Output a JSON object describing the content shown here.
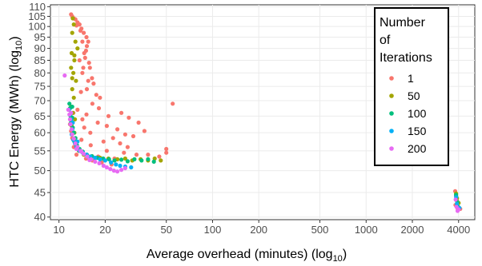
{
  "chart_data": {
    "type": "scatter",
    "xlabel": "Average overhead (minutes) (log",
    "xlabel_sub": "10",
    "xlabel_close": ")",
    "ylabel": "HTC Energy (MWh) (log",
    "ylabel_sub": "10",
    "ylabel_close": ")",
    "x_scale": "log10",
    "y_scale": "log10",
    "xlim": [
      8.8,
      5100
    ],
    "ylim": [
      39.5,
      111
    ],
    "x_ticks": [
      10,
      20,
      50,
      100,
      200,
      500,
      1000,
      2000,
      4000
    ],
    "x_tick_labels": [
      "10",
      "20",
      "50",
      "100",
      "200",
      "500",
      "1000",
      "2000",
      "4000"
    ],
    "y_ticks": [
      40,
      45,
      50,
      55,
      60,
      65,
      70,
      75,
      80,
      85,
      90,
      95,
      100,
      105,
      110
    ],
    "y_tick_labels": [
      "40",
      "45",
      "50",
      "55",
      "60",
      "65",
      "70",
      "75",
      "80",
      "85",
      "90",
      "95",
      "100",
      "105",
      "110"
    ],
    "grid": true,
    "legend": {
      "title_lines": [
        "Number",
        "of",
        "Iterations"
      ],
      "placement": "top-right"
    },
    "series": [
      {
        "name": "1",
        "color": "#F8766D",
        "points": [
          [
            12.0,
            106
          ],
          [
            12.2,
            105
          ],
          [
            12.5,
            104
          ],
          [
            12.8,
            103.5
          ],
          [
            13.2,
            102
          ],
          [
            13.6,
            101
          ],
          [
            14.0,
            99
          ],
          [
            14.5,
            97
          ],
          [
            15.1,
            95
          ],
          [
            15.5,
            93
          ],
          [
            15.2,
            91
          ],
          [
            14.6,
            88
          ],
          [
            14.8,
            86
          ],
          [
            15.7,
            84
          ],
          [
            15.9,
            82
          ],
          [
            14.2,
            80
          ],
          [
            16.4,
            78
          ],
          [
            16.8,
            76
          ],
          [
            15.2,
            74
          ],
          [
            17.5,
            72
          ],
          [
            18.5,
            71
          ],
          [
            16.5,
            69
          ],
          [
            13.2,
            67
          ],
          [
            15.1,
            65.5
          ],
          [
            14.2,
            64
          ],
          [
            17.9,
            63
          ],
          [
            14.6,
            61.5
          ],
          [
            16.0,
            60
          ],
          [
            20.5,
            62
          ],
          [
            25.5,
            66
          ],
          [
            28.5,
            64.5
          ],
          [
            33.0,
            63
          ],
          [
            36.0,
            60.5
          ],
          [
            30.5,
            59
          ],
          [
            22.5,
            58.5
          ],
          [
            25.0,
            57
          ],
          [
            19.5,
            57.5
          ],
          [
            16.1,
            56.5
          ],
          [
            28.0,
            56
          ],
          [
            50.0,
            55.5
          ],
          [
            55.0,
            69
          ],
          [
            20.5,
            55
          ],
          [
            26.5,
            54.5
          ],
          [
            32.0,
            54
          ],
          [
            38.0,
            54
          ],
          [
            45.0,
            53.5
          ],
          [
            50.0,
            54.5
          ],
          [
            23.0,
            53
          ],
          [
            18.0,
            53.5
          ],
          [
            15.0,
            53
          ],
          [
            13.0,
            54
          ],
          [
            12.5,
            56
          ],
          [
            12.2,
            58.5
          ],
          [
            12.0,
            60.5
          ],
          [
            11.8,
            62.5
          ],
          [
            12.1,
            64.5
          ],
          [
            12.4,
            66
          ],
          [
            16.5,
            52.5
          ],
          [
            19.0,
            52
          ],
          [
            22.0,
            51.5
          ],
          [
            13.5,
            55
          ],
          [
            12.8,
            57
          ],
          [
            14.0,
            58
          ],
          [
            13.0,
            100.5
          ],
          [
            13.8,
            98
          ],
          [
            14.2,
            93
          ],
          [
            15.0,
            89
          ],
          [
            13.6,
            85
          ],
          [
            14.4,
            82
          ],
          [
            15.5,
            77
          ],
          [
            13.9,
            73
          ],
          [
            18.2,
            67.5
          ],
          [
            21.0,
            65
          ],
          [
            24.0,
            61
          ],
          [
            27.0,
            59.5
          ],
          [
            3800,
            45.3
          ],
          [
            3850,
            44.2
          ],
          [
            3900,
            43.3
          ],
          [
            3820,
            42.4
          ],
          [
            3950,
            41.6
          ],
          [
            4100,
            41.6
          ]
        ]
      },
      {
        "name": "50",
        "color": "#A3A500",
        "points": [
          [
            12.3,
            104
          ],
          [
            12.5,
            101
          ],
          [
            12.2,
            97
          ],
          [
            12.8,
            93
          ],
          [
            12.1,
            88
          ],
          [
            12.6,
            85
          ],
          [
            12.0,
            82
          ],
          [
            12.4,
            80
          ],
          [
            12.9,
            77
          ],
          [
            12.2,
            74
          ],
          [
            12.5,
            71
          ],
          [
            12.0,
            68
          ],
          [
            12.3,
            66
          ],
          [
            12.7,
            64
          ],
          [
            12.1,
            62
          ],
          [
            12.6,
            60
          ],
          [
            12.4,
            58
          ],
          [
            13.0,
            56.5
          ],
          [
            13.5,
            55
          ],
          [
            14.5,
            54
          ],
          [
            16.0,
            53.5
          ],
          [
            18.5,
            53.2
          ],
          [
            21.0,
            53
          ],
          [
            24.0,
            52.8
          ],
          [
            27.0,
            53
          ],
          [
            30.0,
            52.5
          ],
          [
            34.0,
            52.8
          ],
          [
            38.0,
            52.5
          ],
          [
            42.0,
            53
          ],
          [
            46.0,
            52.5
          ],
          [
            12.6,
            87
          ],
          [
            12.2,
            78
          ],
          [
            13.2,
            90
          ],
          [
            3850,
            44.8
          ],
          [
            3900,
            43.8
          ],
          [
            4000,
            42.8
          ]
        ]
      },
      {
        "name": "100",
        "color": "#00BF7D",
        "points": [
          [
            11.7,
            69
          ],
          [
            11.8,
            67.5
          ],
          [
            12.0,
            66
          ],
          [
            12.2,
            64.5
          ],
          [
            12.0,
            63
          ],
          [
            12.3,
            61.5
          ],
          [
            12.5,
            60
          ],
          [
            12.8,
            58.5
          ],
          [
            12.6,
            57.5
          ],
          [
            13.1,
            56.5
          ],
          [
            13.6,
            55.5
          ],
          [
            14.3,
            54.8
          ],
          [
            15.2,
            54
          ],
          [
            16.4,
            53.6
          ],
          [
            17.8,
            53.2
          ],
          [
            19.4,
            53
          ],
          [
            21.2,
            52.8
          ],
          [
            23.0,
            52.5
          ],
          [
            25.5,
            52.7
          ],
          [
            28.0,
            52.3
          ],
          [
            31.0,
            52.8
          ],
          [
            34.5,
            52.5
          ],
          [
            38.0,
            52.8
          ],
          [
            41.5,
            52.2
          ],
          [
            12.2,
            68
          ],
          [
            11.9,
            65
          ],
          [
            3850,
            44.5
          ],
          [
            3920,
            43.0
          ],
          [
            3980,
            42.0
          ]
        ]
      },
      {
        "name": "150",
        "color": "#00B0F6",
        "points": [
          [
            11.6,
            67
          ],
          [
            11.8,
            65.5
          ],
          [
            12.0,
            64
          ],
          [
            11.9,
            62.5
          ],
          [
            12.2,
            61
          ],
          [
            12.1,
            59.5
          ],
          [
            12.4,
            58
          ],
          [
            12.7,
            57
          ],
          [
            13.0,
            56
          ],
          [
            13.6,
            55
          ],
          [
            14.3,
            54.5
          ],
          [
            15.1,
            54
          ],
          [
            16.0,
            53.5
          ],
          [
            17.2,
            53.2
          ],
          [
            18.5,
            52.8
          ],
          [
            20.0,
            52.5
          ],
          [
            21.8,
            52
          ],
          [
            23.5,
            51.5
          ],
          [
            25.0,
            51.2
          ],
          [
            27.0,
            51
          ],
          [
            29.5,
            50.8
          ],
          [
            12.3,
            63
          ],
          [
            13.2,
            57.5
          ],
          [
            3860,
            44.0
          ],
          [
            3900,
            42.6
          ],
          [
            4050,
            41.8
          ]
        ]
      },
      {
        "name": "200",
        "color": "#E76BF3",
        "points": [
          [
            10.9,
            79
          ],
          [
            11.5,
            67
          ],
          [
            11.7,
            65.5
          ],
          [
            11.8,
            64
          ],
          [
            11.9,
            62.5
          ],
          [
            12.1,
            61
          ],
          [
            12.2,
            59.5
          ],
          [
            12.5,
            58.3
          ],
          [
            12.8,
            57
          ],
          [
            13.2,
            56
          ],
          [
            13.8,
            55
          ],
          [
            14.5,
            54.2
          ],
          [
            15.3,
            53.5
          ],
          [
            16.2,
            52.8
          ],
          [
            17.2,
            52.2
          ],
          [
            18.3,
            51.8
          ],
          [
            19.5,
            51.2
          ],
          [
            20.5,
            50.8
          ],
          [
            21.6,
            50.4
          ],
          [
            22.8,
            50
          ],
          [
            24.0,
            49.8
          ],
          [
            25.5,
            50.2
          ],
          [
            27.0,
            50.6
          ],
          [
            12.0,
            66
          ],
          [
            13.0,
            55.5
          ],
          [
            14.0,
            54.8
          ],
          [
            15.8,
            52.6
          ],
          [
            3830,
            43.5
          ],
          [
            3880,
            42.0
          ],
          [
            3940,
            41.2
          ],
          [
            4000,
            41.5
          ]
        ]
      }
    ]
  }
}
